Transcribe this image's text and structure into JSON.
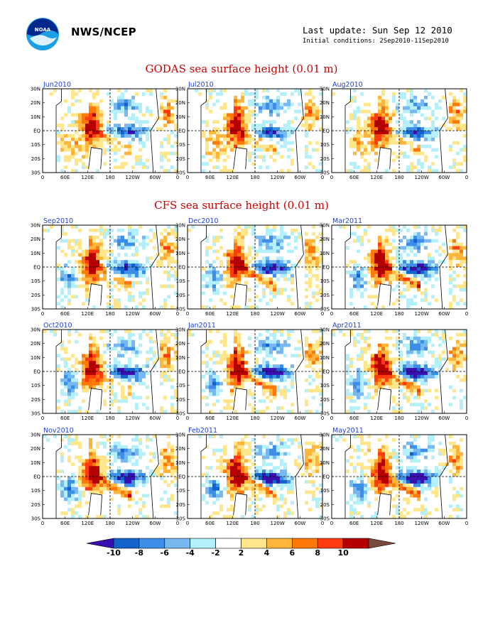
{
  "header": {
    "org": "NWS/NCEP",
    "last_update": "Last update: Sun Sep 12 2010",
    "initial_conditions": "Initial conditions: 2Sep2010-11Sep2010"
  },
  "sections": [
    {
      "title": "GODAS sea surface height (0.01 m)"
    },
    {
      "title": "CFS sea surface height (0.01 m)"
    }
  ],
  "colors": {
    "title": "#cc0000",
    "panel_label": "#1f3fd6",
    "land": "#ffffff",
    "scale": [
      "#3a0fb0",
      "#1463cc",
      "#3c8ee6",
      "#78b8f0",
      "#b4f0fa",
      "#ffffff",
      "#ffe68a",
      "#ffb43c",
      "#ff780a",
      "#ff3c0f",
      "#b40000",
      "#7a4a3c"
    ]
  },
  "chart_data": [
    {
      "type": "heatmap",
      "group": "GODAS",
      "panels": [
        "Jun2010",
        "Jul2010",
        "Aug2010"
      ]
    },
    {
      "type": "heatmap",
      "group": "CFS",
      "panels": [
        "Sep2010",
        "Dec2010",
        "Mar2011",
        "Oct2010",
        "Jan2011",
        "Apr2011",
        "Nov2010",
        "Feb2011",
        "May2011"
      ]
    }
  ],
  "axes": {
    "y_ticks": [
      "30N",
      "20N",
      "10N",
      "EQ",
      "10S",
      "20S",
      "30S"
    ],
    "x_ticks": [
      "0",
      "60E",
      "120E",
      "180",
      "120W",
      "60W",
      "0"
    ],
    "lat_range": [
      -30,
      30
    ],
    "lon_range": [
      0,
      360
    ]
  },
  "colorbar": {
    "levels": [
      "-10",
      "-8",
      "-6",
      "-4",
      "-2",
      "2",
      "4",
      "6",
      "8",
      "10"
    ],
    "colors": [
      "#3a0fb0",
      "#1463cc",
      "#3c8ee6",
      "#78b8f0",
      "#b4f0fa",
      "#ffffff",
      "#ffe68a",
      "#ffb43c",
      "#ff780a",
      "#ff3c0f",
      "#b40000",
      "#7a4a3c"
    ]
  }
}
